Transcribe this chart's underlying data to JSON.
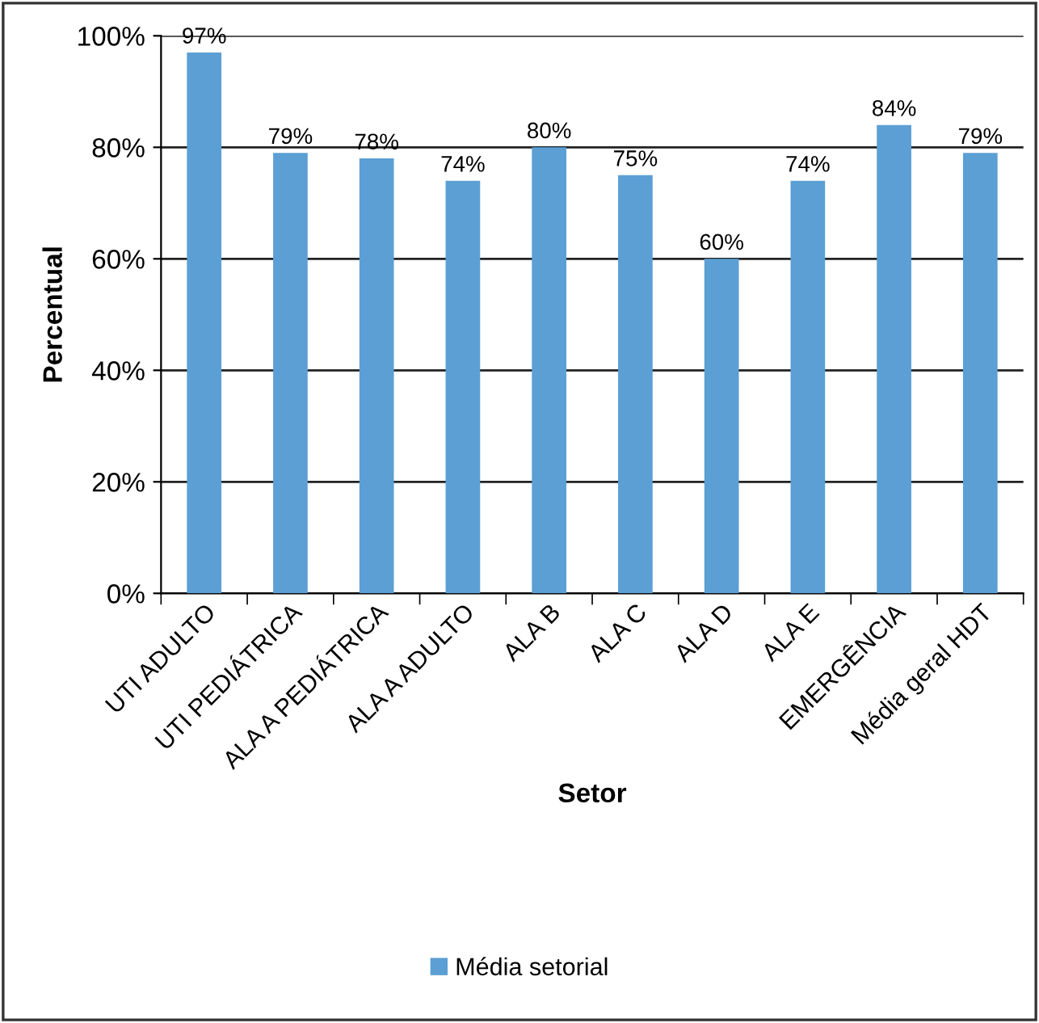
{
  "chart_data": {
    "type": "bar",
    "xlabel": "Setor",
    "ylabel": "Percentual",
    "categories": [
      "UTI ADULTO",
      "UTI PEDIÁTRICA",
      "ALA A PEDIÁTRICA",
      "ALA A ADULTO",
      "ALA B",
      "ALA C",
      "ALA D",
      "ALA E",
      "EMERGÊNCIA",
      "Média geral HDT"
    ],
    "series": [
      {
        "name": "Média setorial",
        "color": "#5b9fd4",
        "values": [
          97,
          79,
          78,
          74,
          80,
          75,
          60,
          74,
          84,
          79
        ],
        "value_labels": [
          "97%",
          "79%",
          "78%",
          "74%",
          "80%",
          "75%",
          "60%",
          "74%",
          "84%",
          "79%"
        ]
      }
    ],
    "ylim": [
      0,
      100
    ],
    "yticks": [
      {
        "value": 0,
        "label": "0%"
      },
      {
        "value": 20,
        "label": "20%"
      },
      {
        "value": 40,
        "label": "40%"
      },
      {
        "value": 60,
        "label": "60%"
      },
      {
        "value": 80,
        "label": "80%"
      },
      {
        "value": 100,
        "label": "100%"
      }
    ],
    "grid": "y",
    "legend": "bottom"
  }
}
